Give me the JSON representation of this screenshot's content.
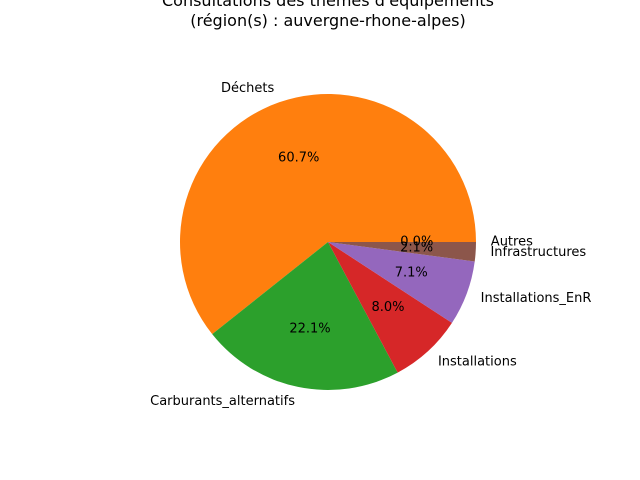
{
  "chart_data": {
    "type": "pie",
    "title": "Consultations des thèmes d'équipements\n(région(s) : auvergne-rhone-alpes)",
    "slices": [
      {
        "label": "Autres",
        "percent_label": "0.0%",
        "value": 0.0,
        "color": "#1f77b4"
      },
      {
        "label": "Déchets",
        "percent_label": "60.7%",
        "value": 60.7,
        "color": "#ff7f0e"
      },
      {
        "label": "Carburants_alternatifs",
        "percent_label": "22.1%",
        "value": 22.1,
        "color": "#2ca02c"
      },
      {
        "label": "Installations",
        "percent_label": "8.0%",
        "value": 8.0,
        "color": "#d62728"
      },
      {
        "label": "Installations_EnR",
        "percent_label": "7.1%",
        "value": 7.1,
        "color": "#9467bd"
      },
      {
        "label": "Infrastructures",
        "percent_label": "2.1%",
        "value": 2.1,
        "color": "#8c564b"
      }
    ]
  }
}
